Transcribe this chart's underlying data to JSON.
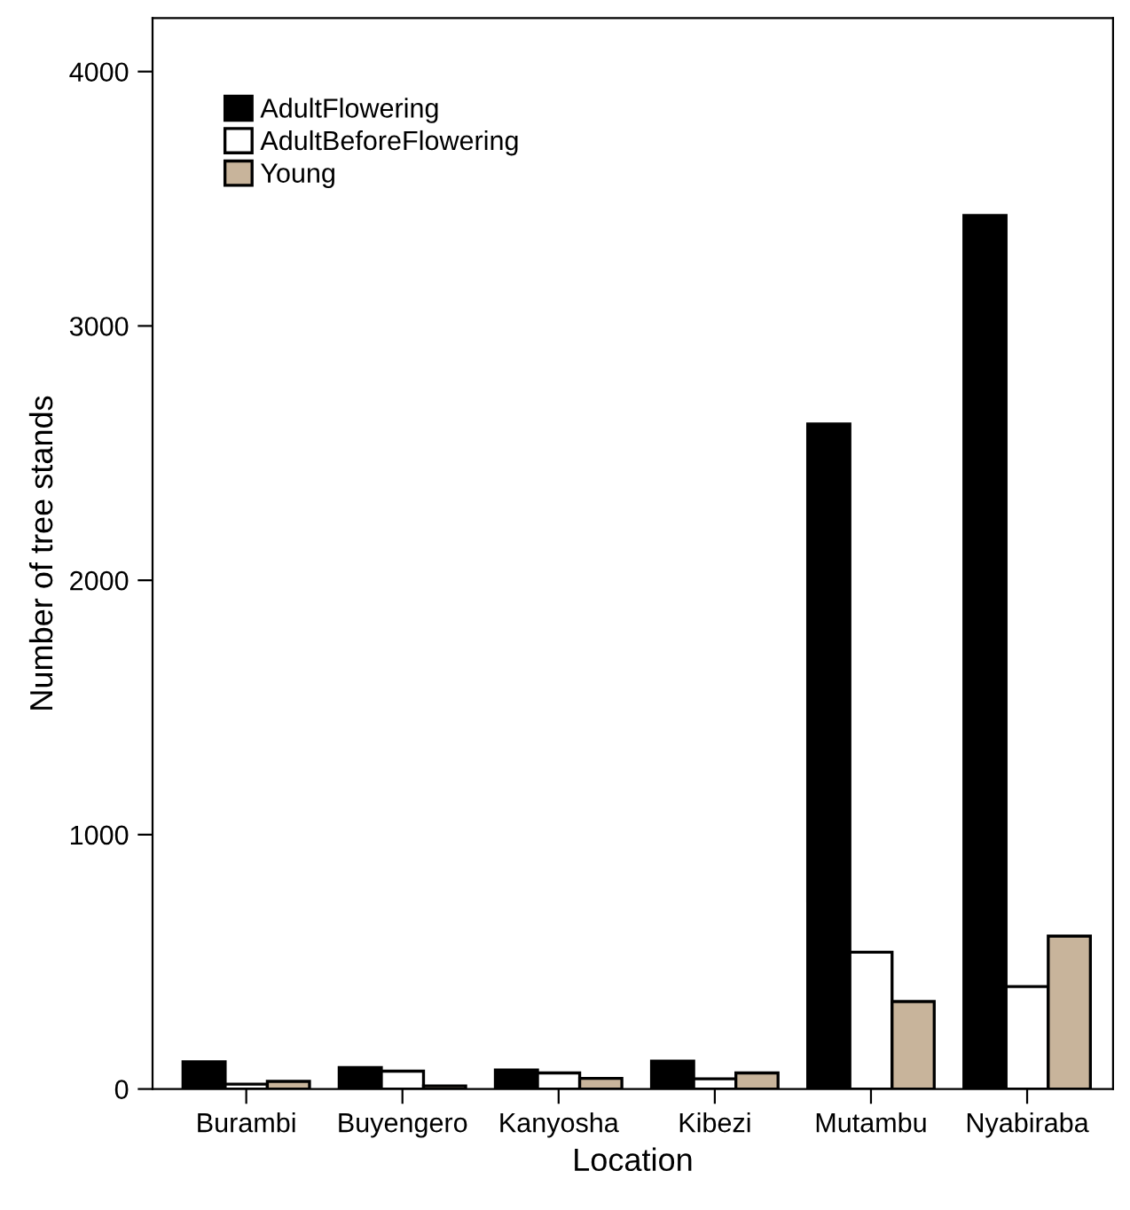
{
  "chart_data": {
    "type": "bar",
    "xlabel": "Location",
    "ylabel": "Number of tree stands",
    "categories": [
      "Burambi",
      "Buyengero",
      "Kanyosha",
      "Kibezi",
      "Mutambu",
      "Nyabiraba"
    ],
    "series": [
      {
        "name": "AdultFlowering",
        "color": "#000000",
        "values": [
          107,
          84,
          75,
          110,
          2615,
          3434
        ]
      },
      {
        "name": "AdultBeforeFlowering",
        "color": "#ffffff",
        "values": [
          19,
          70,
          63,
          40,
          538,
          403
        ]
      },
      {
        "name": "Young",
        "color": "#c8b49b",
        "values": [
          30,
          12,
          42,
          63,
          344,
          601
        ]
      }
    ],
    "ylim": [
      0,
      4210
    ],
    "yticks": [
      0,
      1000,
      2000,
      3000,
      4000
    ],
    "grid": false,
    "legend": "top left"
  }
}
